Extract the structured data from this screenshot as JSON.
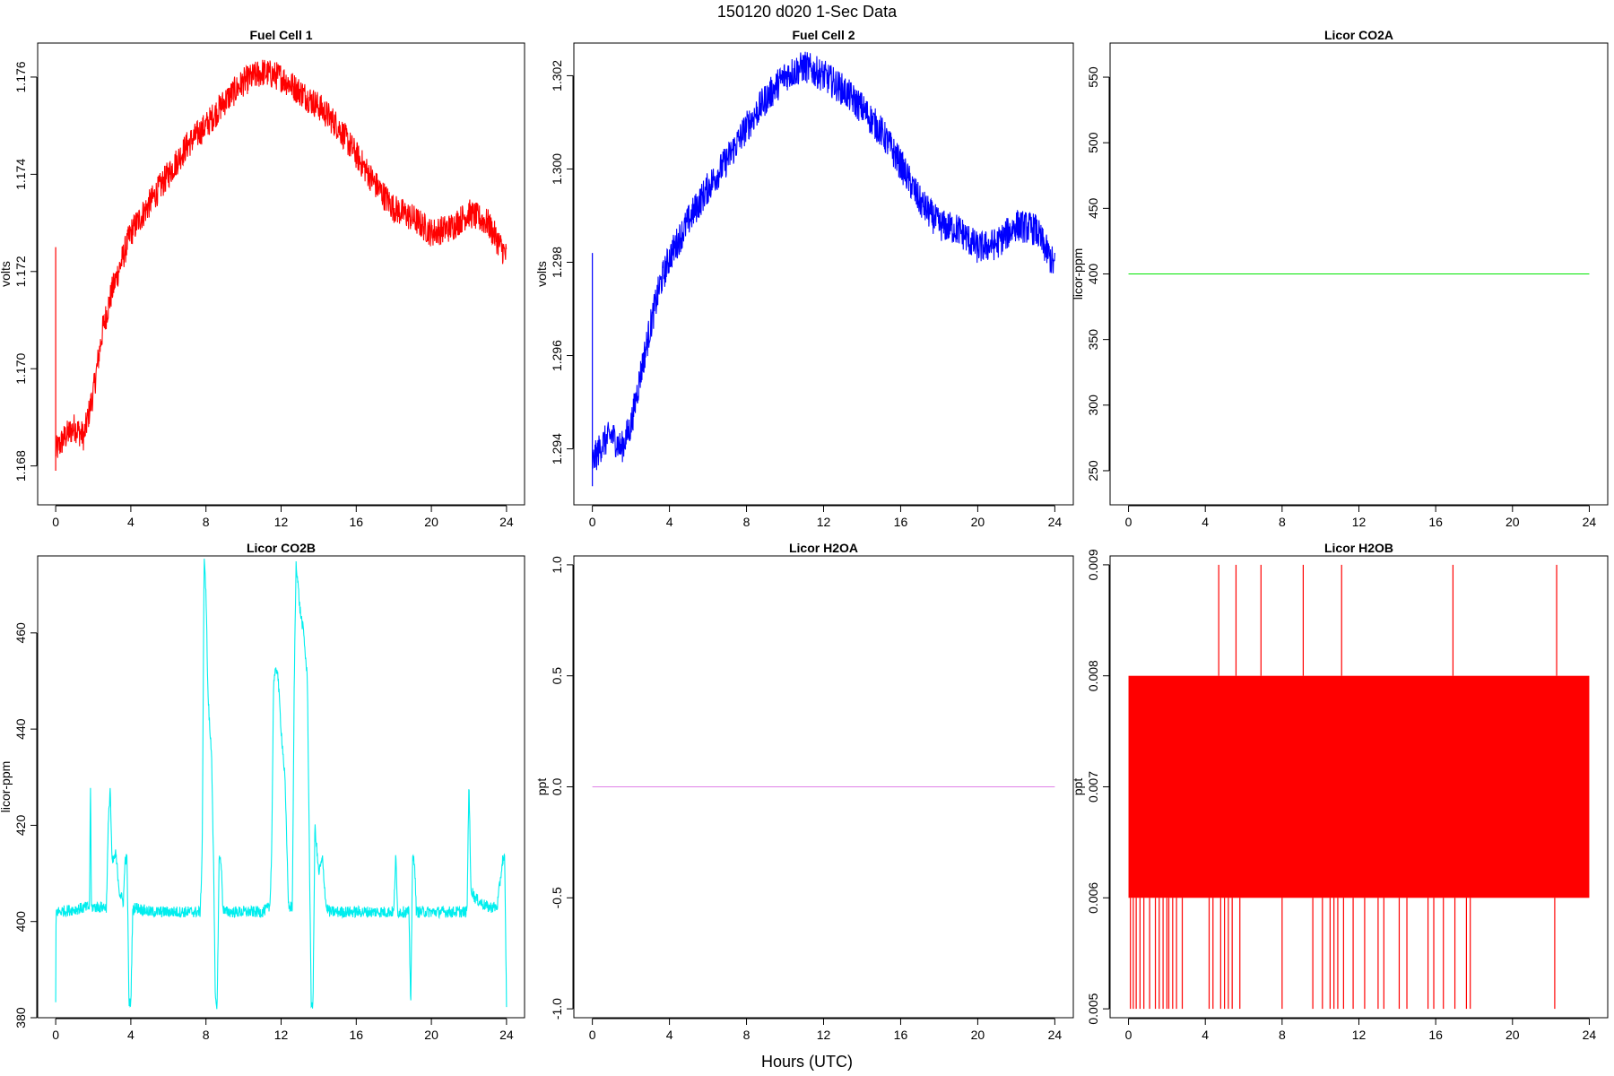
{
  "figure": {
    "title": "150120    d020    1-Sec Data",
    "xlabel": "Hours (UTC)"
  },
  "chart_data": [
    {
      "type": "line",
      "title": "Fuel Cell 1",
      "ylabel": "volts",
      "color": "#ff0000",
      "xlim": [
        -0.96,
        24.96
      ],
      "ylim": [
        1.1672,
        1.1767
      ],
      "xticks": [
        0,
        4,
        8,
        12,
        16,
        20,
        24
      ],
      "yticks": [
        1.168,
        1.17,
        1.172,
        1.174,
        1.176
      ],
      "ytick_labels": [
        "1.168",
        "1.170",
        "1.172",
        "1.174",
        "1.176"
      ],
      "x": [
        0,
        0.5,
        1,
        1.5,
        2,
        2.5,
        3,
        3.5,
        4,
        5,
        6,
        7,
        8,
        9,
        10,
        11,
        12,
        13,
        14,
        15,
        16,
        17,
        18,
        19,
        20,
        21,
        22,
        23,
        24
      ],
      "y": [
        1.1683,
        1.1686,
        1.1688,
        1.1686,
        1.1695,
        1.1708,
        1.1716,
        1.1722,
        1.1728,
        1.1734,
        1.174,
        1.1746,
        1.175,
        1.1755,
        1.1759,
        1.1761,
        1.176,
        1.1757,
        1.1754,
        1.175,
        1.1744,
        1.1738,
        1.1733,
        1.1731,
        1.1728,
        1.1729,
        1.1732,
        1.173,
        1.1723
      ],
      "noise": 0.0003,
      "spikes": [
        {
          "x": 0,
          "y_low": 1.1679,
          "y_high": 1.1725
        }
      ]
    },
    {
      "type": "line",
      "title": "Fuel Cell 2",
      "ylabel": "volts",
      "color": "#0000ff",
      "xlim": [
        -0.96,
        24.96
      ],
      "ylim": [
        1.2928,
        1.3027
      ],
      "xticks": [
        0,
        4,
        8,
        12,
        16,
        20,
        24
      ],
      "yticks": [
        1.294,
        1.296,
        1.298,
        1.3,
        1.302
      ],
      "ytick_labels": [
        "1.294",
        "1.296",
        "1.298",
        "1.300",
        "1.302"
      ],
      "x": [
        0,
        0.5,
        1,
        1.5,
        2,
        2.5,
        3,
        3.5,
        4,
        5,
        6,
        7,
        8,
        9,
        10,
        11,
        12,
        13,
        14,
        15,
        16,
        17,
        18,
        19,
        20,
        21,
        22,
        23,
        24
      ],
      "y": [
        1.2937,
        1.2941,
        1.2943,
        1.294,
        1.2945,
        1.2956,
        1.2966,
        1.2975,
        1.2981,
        1.2989,
        1.2996,
        1.3002,
        1.3009,
        1.3015,
        1.302,
        1.3022,
        1.302,
        1.3017,
        1.3013,
        1.3008,
        1.3001,
        1.2993,
        1.2988,
        1.2987,
        1.2983,
        1.2984,
        1.2988,
        1.2987,
        1.2979
      ],
      "noise": 0.00035,
      "spikes": [
        {
          "x": 0,
          "y_low": 1.2932,
          "y_high": 1.2982
        }
      ]
    },
    {
      "type": "line",
      "title": "Licor CO2A",
      "ylabel": "licor-ppm",
      "color": "#00e600",
      "xlim": [
        -0.96,
        24.96
      ],
      "ylim": [
        224,
        576
      ],
      "xticks": [
        0,
        4,
        8,
        12,
        16,
        20,
        24
      ],
      "yticks": [
        250,
        300,
        350,
        400,
        450,
        500,
        550
      ],
      "ytick_labels": [
        "250",
        "300",
        "350",
        "400",
        "450",
        "500",
        "550"
      ],
      "x": [
        0,
        24
      ],
      "y": [
        400,
        400
      ],
      "noise": 0
    },
    {
      "type": "line",
      "title": "Licor CO2B",
      "ylabel": "licor-ppm",
      "color": "#00eeee",
      "xlim": [
        -0.96,
        24.96
      ],
      "ylim": [
        380,
        476
      ],
      "xticks": [
        0,
        4,
        8,
        12,
        16,
        20,
        24
      ],
      "yticks": [
        380,
        400,
        420,
        440,
        460
      ],
      "ytick_labels": [
        "380",
        "400",
        "420",
        "440",
        "460"
      ],
      "x": [
        0,
        0.02,
        0.1,
        1.8,
        1.85,
        1.9,
        2.7,
        2.8,
        2.9,
        3.0,
        3.2,
        3.4,
        3.6,
        3.7,
        3.8,
        3.9,
        4.0,
        4.1,
        4.2,
        5,
        6,
        7,
        7.7,
        7.8,
        7.9,
        8.0,
        8.1,
        8.2,
        8.3,
        8.4,
        8.5,
        8.6,
        8.7,
        8.8,
        8.9,
        9.0,
        9.2,
        10,
        11,
        11.4,
        11.5,
        11.6,
        11.8,
        12.0,
        12.2,
        12.4,
        12.6,
        12.7,
        12.8,
        12.9,
        13.0,
        13.2,
        13.4,
        13.6,
        13.7,
        13.8,
        14.0,
        14.2,
        14.4,
        14.6,
        14.8,
        15,
        16,
        17,
        18,
        18.1,
        18.2,
        18.3,
        18.8,
        18.9,
        19.0,
        19.1,
        19.2,
        20,
        21,
        21.9,
        22.0,
        22.1,
        22.3,
        22.6,
        23.0,
        23.5,
        23.8,
        23.9,
        24.0
      ],
      "y": [
        383,
        402,
        402,
        403,
        430,
        403,
        403,
        420,
        428,
        412,
        414,
        406,
        404,
        413,
        413,
        383,
        383,
        402,
        403,
        402,
        402,
        402,
        402,
        415,
        475,
        469,
        448,
        440,
        435,
        413,
        383,
        383,
        413,
        413,
        403,
        402,
        402,
        402,
        402,
        403,
        415,
        450,
        453,
        440,
        430,
        403,
        403,
        450,
        475,
        470,
        465,
        460,
        450,
        383,
        383,
        420,
        410,
        413,
        403,
        402,
        402,
        402,
        402,
        402,
        402,
        414,
        402,
        402,
        402,
        383,
        413,
        413,
        402,
        402,
        402,
        402,
        430,
        407,
        405,
        404,
        403,
        403,
        413,
        413,
        383
      ],
      "noise": 1.2
    },
    {
      "type": "line",
      "title": "Licor H2OA",
      "ylabel": "ppt",
      "color": "#e080e8",
      "xlim": [
        -0.96,
        24.96
      ],
      "ylim": [
        -1.04,
        1.04
      ],
      "xticks": [
        0,
        4,
        8,
        12,
        16,
        20,
        24
      ],
      "yticks": [
        -1.0,
        -0.5,
        0.0,
        0.5,
        1.0
      ],
      "ytick_labels": [
        "-1.0",
        "-0.5",
        "0.0",
        "0.5",
        "1.0"
      ],
      "x": [
        0,
        24
      ],
      "y": [
        0,
        0
      ],
      "noise": 0
    },
    {
      "type": "line",
      "title": "Licor H2OB",
      "ylabel": "ppt",
      "color": "#ff0000",
      "xlim": [
        -0.96,
        24.96
      ],
      "ylim": [
        0.00492,
        0.00908
      ],
      "xticks": [
        0,
        4,
        8,
        12,
        16,
        20,
        24
      ],
      "yticks": [
        0.005,
        0.006,
        0.007,
        0.008,
        0.009
      ],
      "ytick_labels": [
        "0.005",
        "0.006",
        "0.007",
        "0.008",
        "0.009"
      ],
      "x": [
        0,
        24
      ],
      "y": [
        0.007,
        0.007
      ],
      "band": [
        0.006,
        0.008
      ],
      "high_spikes_x": [
        4.7,
        5.6,
        6.9,
        9.1,
        11.1,
        16.9,
        22.3
      ],
      "high_value": 0.009,
      "low_spikes_x": [
        0.1,
        0.25,
        0.4,
        0.6,
        0.8,
        1.1,
        1.4,
        1.6,
        1.8,
        2.0,
        2.1,
        2.3,
        2.5,
        2.8,
        4.2,
        4.4,
        4.8,
        5.0,
        5.2,
        5.4,
        5.8,
        8.0,
        9.6,
        10.1,
        10.5,
        10.7,
        10.9,
        11.2,
        11.7,
        12.3,
        13.0,
        13.3,
        14.1,
        14.5,
        15.6,
        15.9,
        16.4,
        17.0,
        17.6,
        17.8,
        22.2
      ],
      "low_value": 0.005
    }
  ]
}
